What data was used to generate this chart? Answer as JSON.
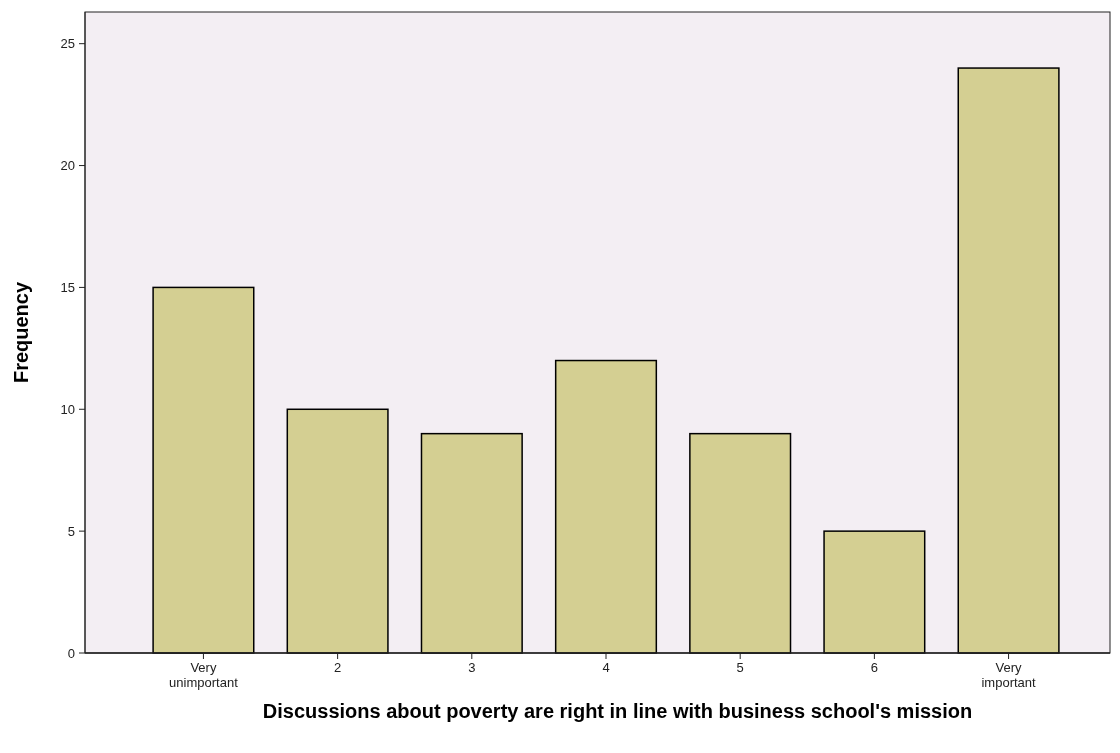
{
  "chart_data": {
    "type": "bar",
    "xlabel": "Discussions about poverty are right in line with business school's mission",
    "ylabel": "Frequency",
    "categories": [
      "Very unimportant",
      "2",
      "3",
      "4",
      "5",
      "6",
      "Very important"
    ],
    "values": [
      15,
      10,
      9,
      12,
      9,
      5,
      24
    ],
    "color": "#d4cf92",
    "ylim": [
      0,
      26.3
    ],
    "yticks": [
      0,
      5,
      10,
      15,
      20,
      25
    ],
    "grid": false
  }
}
